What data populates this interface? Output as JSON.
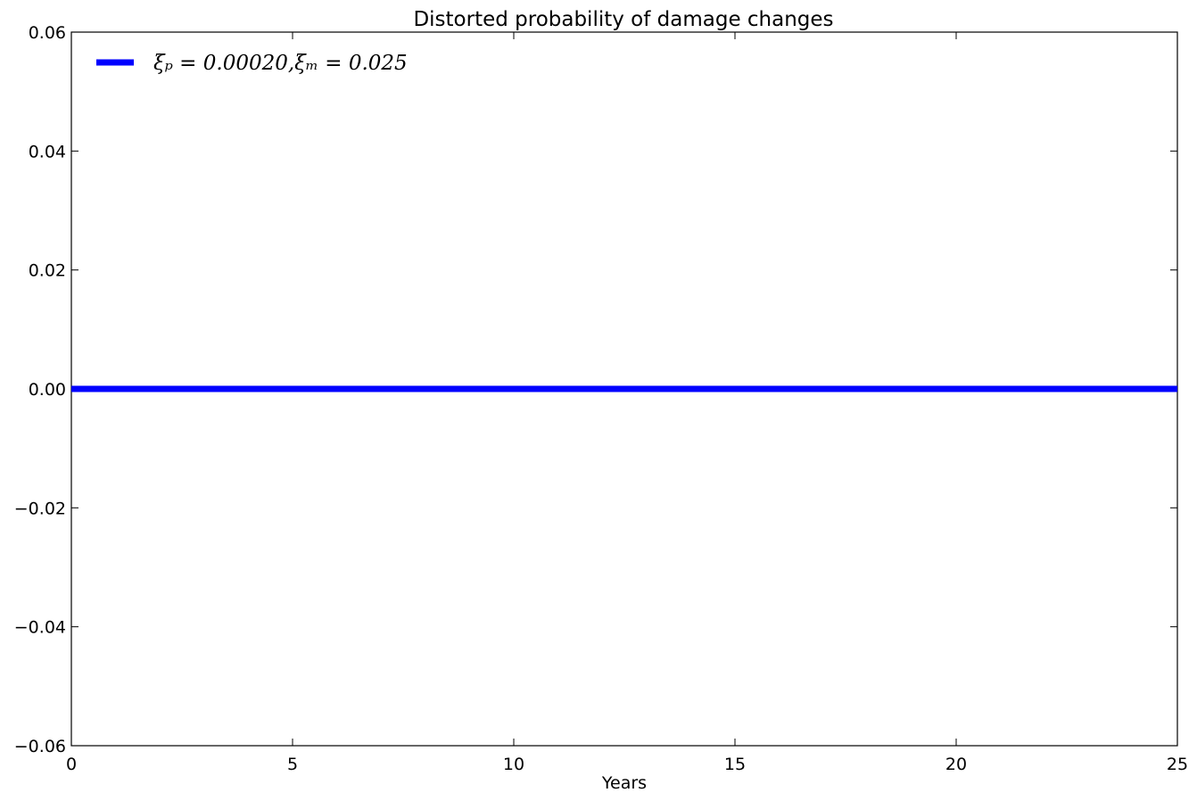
{
  "chart_data": {
    "type": "line",
    "title": "Distorted probability of damage changes",
    "xlabel": "Years",
    "ylabel": "",
    "xlim": [
      0,
      25
    ],
    "ylim": [
      -0.06,
      0.06
    ],
    "xticks": [
      0,
      5,
      10,
      15,
      20,
      25
    ],
    "xtick_labels": [
      "0",
      "5",
      "10",
      "15",
      "20",
      "25"
    ],
    "yticks": [
      -0.06,
      -0.04,
      -0.02,
      0.0,
      0.02,
      0.04,
      0.06
    ],
    "ytick_labels": [
      "−0.06",
      "−0.04",
      "−0.02",
      "0.00",
      "0.02",
      "0.04",
      "0.06"
    ],
    "grid": false,
    "legend_position": "top-left",
    "series": [
      {
        "name": "ξₚ = 0.00020,ξₘ = 0.025",
        "color": "#0000ff",
        "x": [
          0,
          5,
          10,
          15,
          20,
          25
        ],
        "y": [
          0,
          0,
          0,
          0,
          0,
          0
        ]
      }
    ]
  }
}
